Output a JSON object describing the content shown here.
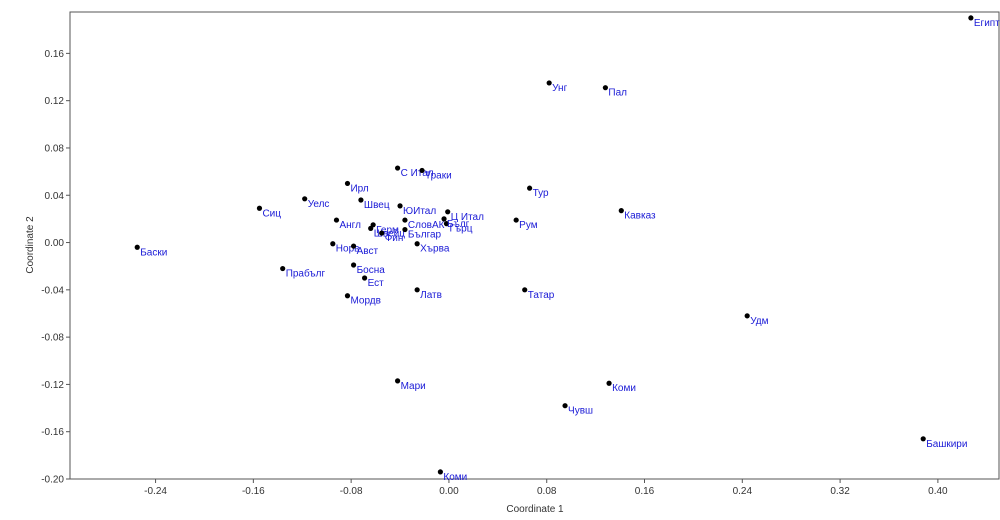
{
  "chart_data": {
    "type": "scatter",
    "title": "",
    "xlabel": "Coordinate 1",
    "ylabel": "Coordinate 2",
    "xlim": [
      -0.31,
      0.45
    ],
    "ylim": [
      -0.2,
      0.195
    ],
    "xticks": [
      "-0.24",
      "-0.16",
      "-0.08",
      "0.00",
      "0.08",
      "0.16",
      "0.24",
      "0.32",
      "0.40"
    ],
    "yticks": [
      "0.16",
      "0.12",
      "0.08",
      "0.04",
      "0.00",
      "-0.04",
      "-0.08",
      "-0.12",
      "-0.16",
      "-0.20"
    ],
    "grid": false,
    "points": [
      {
        "label": "Египт",
        "x": 0.427,
        "y": 0.19
      },
      {
        "label": "Унг",
        "x": 0.082,
        "y": 0.135
      },
      {
        "label": "Пал",
        "x": 0.128,
        "y": 0.131
      },
      {
        "label": "С Итал",
        "x": -0.042,
        "y": 0.063
      },
      {
        "label": "Траки",
        "x": -0.022,
        "y": 0.061
      },
      {
        "label": "Ирл",
        "x": -0.083,
        "y": 0.05
      },
      {
        "label": "Тур",
        "x": 0.066,
        "y": 0.046
      },
      {
        "label": "Уелс",
        "x": -0.118,
        "y": 0.037
      },
      {
        "label": "Швец",
        "x": -0.072,
        "y": 0.036
      },
      {
        "label": "ЮИтал",
        "x": -0.04,
        "y": 0.031
      },
      {
        "label": "Сиц",
        "x": -0.155,
        "y": 0.029
      },
      {
        "label": "Кавказ",
        "x": 0.141,
        "y": 0.027
      },
      {
        "label": "Ц Итал",
        "x": -0.001,
        "y": 0.026
      },
      {
        "label": "Герм",
        "x": -0.062,
        "y": 0.015
      },
      {
        "label": "СловАК",
        "x": -0.036,
        "y": 0.019
      },
      {
        "label": "Рум",
        "x": 0.055,
        "y": 0.019
      },
      {
        "label": "Англ",
        "x": -0.092,
        "y": 0.019
      },
      {
        "label": "Гърц",
        "x": -0.002,
        "y": 0.016
      },
      {
        "label": "Швейц",
        "x": -0.064,
        "y": 0.012
      },
      {
        "label": "Фин",
        "x": -0.055,
        "y": 0.008
      },
      {
        "label": "Бълг",
        "x": -0.004,
        "y": 0.02
      },
      {
        "label": "Българ",
        "x": -0.036,
        "y": 0.011
      },
      {
        "label": "Норв",
        "x": -0.095,
        "y": -0.001
      },
      {
        "label": "Авст",
        "x": -0.078,
        "y": -0.003
      },
      {
        "label": "Хърва",
        "x": -0.026,
        "y": -0.001
      },
      {
        "label": "Баски",
        "x": -0.255,
        "y": -0.004
      },
      {
        "label": "Босна",
        "x": -0.078,
        "y": -0.019
      },
      {
        "label": "Прабълг",
        "x": -0.136,
        "y": -0.022
      },
      {
        "label": "Ест",
        "x": -0.069,
        "y": -0.03
      },
      {
        "label": "Латв",
        "x": -0.026,
        "y": -0.04
      },
      {
        "label": "Татар",
        "x": 0.062,
        "y": -0.04
      },
      {
        "label": "Мордв",
        "x": -0.083,
        "y": -0.045
      },
      {
        "label": "Удм",
        "x": 0.244,
        "y": -0.062
      },
      {
        "label": "Мари",
        "x": -0.042,
        "y": -0.117
      },
      {
        "label": "Коми",
        "x": 0.131,
        "y": -0.119
      },
      {
        "label": "Чувш",
        "x": 0.095,
        "y": -0.138
      },
      {
        "label": "Башкири",
        "x": 0.388,
        "y": -0.166
      },
      {
        "label": "Коми",
        "x": -0.007,
        "y": -0.194
      }
    ]
  }
}
